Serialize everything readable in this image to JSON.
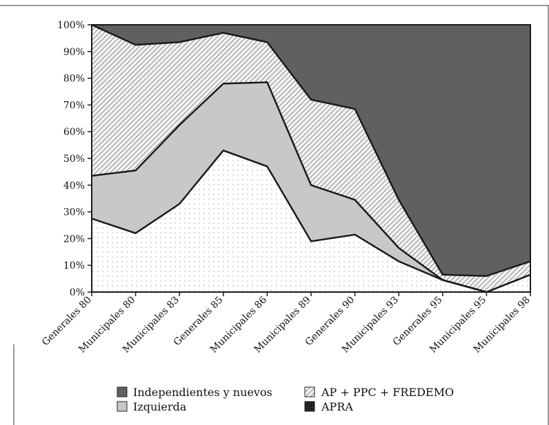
{
  "chart_data": {
    "type": "area",
    "stacked": true,
    "normalized": true,
    "title": "",
    "xlabel": "",
    "ylabel": "",
    "ylim": [
      0,
      100
    ],
    "y_ticks": [
      "0%",
      "10%",
      "20%",
      "30%",
      "40%",
      "50%",
      "60%",
      "70%",
      "80%",
      "90%",
      "100%"
    ],
    "categories": [
      "Generales 80",
      "Municipales 80",
      "Municipales 83",
      "Generales 85",
      "Municipales 86",
      "Municipales 89",
      "Generales 90",
      "Municipales 93",
      "Generales 95",
      "Municipales 95",
      "Municipales 98"
    ],
    "series": [
      {
        "name": "APRA",
        "values": [
          27.5,
          22,
          33,
          53,
          47,
          19,
          21.5,
          11.5,
          4.5,
          0,
          6.5
        ],
        "color": "#e6e6e6"
      },
      {
        "name": "Izquierda",
        "values": [
          16,
          23.5,
          29.5,
          25,
          31.5,
          21,
          13,
          5,
          0,
          0,
          0
        ],
        "color": "#c8c8c8"
      },
      {
        "name": "AP + PPC + FREDEMO",
        "values": [
          56.5,
          47,
          31,
          19,
          15,
          32,
          34,
          18,
          2,
          6,
          5
        ],
        "color": "#9a9a9a"
      },
      {
        "name": "Independientes y nuevos",
        "values": [
          0,
          7.5,
          6.5,
          3,
          6.5,
          28,
          31.5,
          65.5,
          93.5,
          94,
          88.5
        ],
        "color": "#606060"
      }
    ],
    "legend_placement": "bottom",
    "legend_order": [
      "Independientes y nuevos",
      "AP + PPC + FREDEMO",
      "Izquierda",
      "APRA"
    ],
    "grid": false
  }
}
